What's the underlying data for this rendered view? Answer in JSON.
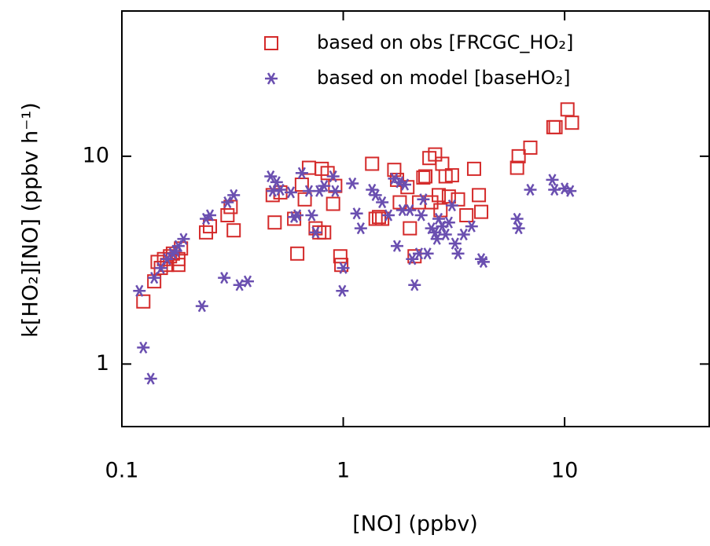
{
  "chart_data": {
    "type": "scatter",
    "x_label": "[NO] (ppbv)",
    "y_label": "k[HO₂][NO] (ppbv h⁻¹)",
    "x_log": true,
    "y_log": true,
    "xlim": [
      0.1,
      45
    ],
    "ylim": [
      0.5,
      50
    ],
    "xticks": [
      0.1,
      1,
      10
    ],
    "yticks": [
      1,
      10
    ],
    "series": [
      {
        "name": "based on obs [FRCGC_HO₂]",
        "color": "#d42a2a",
        "marker": "square",
        "x": [
          0.125,
          0.14,
          0.145,
          0.15,
          0.155,
          0.16,
          0.165,
          0.17,
          0.18,
          0.185,
          0.18,
          0.24,
          0.25,
          0.3,
          0.31,
          0.32,
          0.48,
          0.49,
          0.52,
          0.6,
          0.62,
          0.65,
          0.67,
          0.7,
          0.75,
          0.78,
          0.8,
          0.82,
          0.85,
          0.9,
          0.92,
          0.97,
          0.98,
          1.35,
          1.4,
          1.45,
          1.5,
          1.7,
          1.75,
          1.8,
          1.95,
          2.0,
          2.1,
          2.2,
          2.3,
          2.35,
          2.45,
          2.6,
          2.5,
          2.7,
          2.75,
          2.8,
          2.9,
          3.0,
          3.1,
          3.3,
          3.6,
          3.9,
          4.1,
          4.2,
          6.1,
          6.2,
          7.0,
          8.9,
          9.1,
          10.3,
          10.8
        ],
        "values": [
          2.0,
          2.5,
          3.1,
          2.9,
          3.2,
          3.0,
          3.3,
          3.4,
          3.2,
          3.6,
          3.0,
          4.3,
          4.6,
          5.2,
          5.7,
          4.4,
          6.5,
          4.8,
          6.7,
          5.0,
          3.4,
          7.3,
          6.2,
          8.8,
          4.5,
          4.3,
          8.7,
          4.3,
          8.3,
          5.9,
          7.2,
          3.3,
          3.0,
          9.2,
          5.0,
          5.1,
          5.0,
          8.6,
          7.7,
          6.0,
          7.1,
          4.5,
          3.3,
          6.0,
          7.9,
          8.0,
          9.8,
          10.2,
          6.0,
          6.5,
          5.5,
          9.2,
          8.0,
          6.4,
          8.1,
          6.2,
          5.2,
          8.7,
          6.5,
          5.4,
          8.8,
          10.0,
          11.0,
          13.8,
          13.8,
          16.8,
          14.5
        ]
      },
      {
        "name": "based on model [baseHO₂]",
        "color": "#6a4fb0",
        "marker": "star",
        "x": [
          0.12,
          0.125,
          0.135,
          0.14,
          0.15,
          0.16,
          0.17,
          0.175,
          0.18,
          0.19,
          0.23,
          0.24,
          0.25,
          0.29,
          0.3,
          0.32,
          0.34,
          0.37,
          0.47,
          0.48,
          0.5,
          0.52,
          0.58,
          0.6,
          0.62,
          0.65,
          0.7,
          0.72,
          0.75,
          0.78,
          0.82,
          0.9,
          0.92,
          1.0,
          0.99,
          1.1,
          1.15,
          1.2,
          1.35,
          1.4,
          1.5,
          1.6,
          1.7,
          1.75,
          1.8,
          1.85,
          1.9,
          2.0,
          2.05,
          2.1,
          2.2,
          2.25,
          2.3,
          2.4,
          2.5,
          2.6,
          2.65,
          2.7,
          2.8,
          2.9,
          3.0,
          3.1,
          3.2,
          3.3,
          3.5,
          3.8,
          4.2,
          4.3,
          6.1,
          6.2,
          7.0,
          8.8,
          9.0,
          10.0,
          10.6
        ],
        "values": [
          2.25,
          1.2,
          0.85,
          2.6,
          2.9,
          3.2,
          3.4,
          3.5,
          3.7,
          4.0,
          1.9,
          5.0,
          5.2,
          2.6,
          6.0,
          6.5,
          2.4,
          2.5,
          8.0,
          6.8,
          7.5,
          6.9,
          6.7,
          5.1,
          5.2,
          8.3,
          6.8,
          5.2,
          4.3,
          6.8,
          7.2,
          8.0,
          6.8,
          2.9,
          2.25,
          7.4,
          5.3,
          4.5,
          6.9,
          6.5,
          6.0,
          5.2,
          7.8,
          3.7,
          7.5,
          5.5,
          7.3,
          5.5,
          3.2,
          2.4,
          3.4,
          5.2,
          6.2,
          3.4,
          4.5,
          4.3,
          4.0,
          5.0,
          4.6,
          4.2,
          4.8,
          5.8,
          3.8,
          3.4,
          4.2,
          4.6,
          3.2,
          3.1,
          5.0,
          4.5,
          6.9,
          7.7,
          6.9,
          7.0,
          6.8
        ]
      }
    ]
  }
}
